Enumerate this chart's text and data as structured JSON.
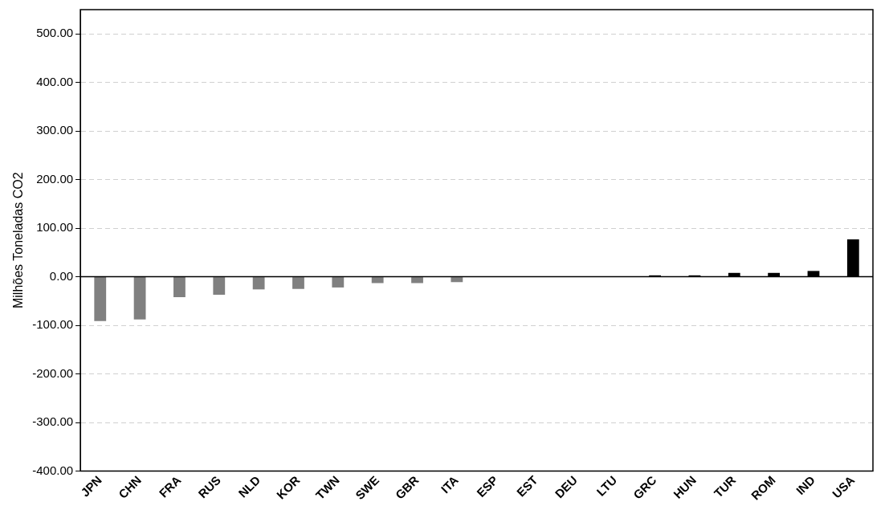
{
  "chart_data": {
    "type": "bar",
    "ylabel": "Milhões Toneladas CO2",
    "categories": [
      "JPN",
      "CHN",
      "FRA",
      "RUS",
      "NLD",
      "KOR",
      "TWN",
      "SWE",
      "GBR",
      "ITA",
      "ESP",
      "EST",
      "DEU",
      "LTU",
      "GRC",
      "HUN",
      "TUR",
      "ROM",
      "IND",
      "USA"
    ],
    "values": [
      -91,
      -88,
      -42,
      -37,
      -26,
      -25,
      -22,
      -13,
      -13,
      -11,
      1,
      1,
      1,
      1,
      3,
      3,
      8,
      8,
      12,
      77
    ],
    "colors": [
      "#808080",
      "#808080",
      "#808080",
      "#808080",
      "#808080",
      "#808080",
      "#808080",
      "#808080",
      "#808080",
      "#808080",
      "#000000",
      "#000000",
      "#000000",
      "#000000",
      "#000000",
      "#000000",
      "#000000",
      "#000000",
      "#000000",
      "#000000"
    ],
    "ylim": [
      -400,
      550
    ],
    "yticks": [
      {
        "value": -400,
        "label": "-400.00"
      },
      {
        "value": -300,
        "label": "-300.00"
      },
      {
        "value": -200,
        "label": "-200.00"
      },
      {
        "value": -100,
        "label": "-100.00"
      },
      {
        "value": 0,
        "label": "0.00"
      },
      {
        "value": 100,
        "label": "100.00"
      },
      {
        "value": 200,
        "label": "200.00"
      },
      {
        "value": 300,
        "label": "300.00"
      },
      {
        "value": 400,
        "label": "400.00"
      },
      {
        "value": 500,
        "label": "500.00"
      }
    ],
    "grid": "y",
    "legend": false
  }
}
